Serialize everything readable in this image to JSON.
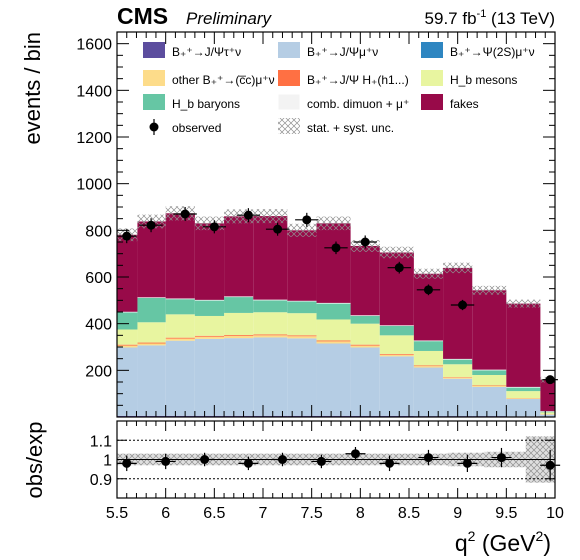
{
  "header": {
    "experiment": "CMS",
    "status": "Preliminary",
    "lumi": "59.7 fb",
    "lumi_sup": "-1",
    "energy": " (13 TeV)"
  },
  "chart_data": {
    "type": "bar",
    "stacked": true,
    "ylabel": "events / bin",
    "ratio_ylabel": "obs/exp",
    "xlabel": "q",
    "xlabel_sup": "2",
    "xlabel_unit": " (GeV",
    "xlabel_unit_sup": "2",
    "xlabel_unit_close": ")",
    "xlim": [
      5.5,
      10
    ],
    "ylim": [
      0,
      1650
    ],
    "ratio_ylim": [
      0.8,
      1.2
    ],
    "xticks": [
      "5.5",
      "6",
      "6.5",
      "7",
      "7.5",
      "8",
      "8.5",
      "9",
      "9.5",
      "10"
    ],
    "yticks": [
      "200",
      "400",
      "600",
      "800",
      "1000",
      "1200",
      "1400",
      "1600"
    ],
    "ratio_yticks": [
      "0.9",
      "1",
      "1.1"
    ],
    "ratio_reference_lines": [
      0.9,
      1.0,
      1.1
    ],
    "grid": false,
    "legend_position": "top",
    "bin_edges": [
      5.5,
      5.71,
      6.0,
      6.3,
      6.6,
      6.9,
      7.25,
      7.55,
      7.9,
      8.2,
      8.55,
      8.85,
      9.15,
      9.5,
      9.85,
      10.0
    ],
    "series": [
      {
        "name": "B₊⁺→J/Ψτ⁺ν",
        "key": "tau",
        "color": "#5c4d9e",
        "values": [
          5,
          5,
          5,
          5,
          5,
          5,
          5,
          5,
          5,
          5,
          4,
          4,
          4,
          3,
          2
        ]
      },
      {
        "name": "B₊⁺→J/Ψμ⁺ν",
        "key": "mu",
        "color": "#b5cde4",
        "values": [
          293,
          302,
          322,
          330,
          333,
          336,
          332,
          310,
          293,
          255,
          208,
          160,
          125,
          74,
          8
        ]
      },
      {
        "name": "B₊⁺→Ψ(2S)μ⁺ν",
        "key": "psi2s",
        "color": "#2e86c1",
        "values": [
          0,
          0,
          0,
          0,
          0,
          0,
          0,
          0,
          0,
          0,
          0,
          0,
          0,
          0,
          0
        ]
      },
      {
        "name": "other B₊⁺→(c̅c)μ⁺ν",
        "key": "other",
        "color": "#fddc8a",
        "values": [
          8,
          8,
          9,
          9,
          9,
          9,
          9,
          9,
          8,
          7,
          6,
          5,
          4,
          3,
          1
        ]
      },
      {
        "name": "B₊⁺→J/Ψ H₊(h1...)",
        "key": "hc",
        "color": "#ff7043",
        "values": [
          4,
          4,
          4,
          4,
          4,
          4,
          4,
          4,
          4,
          3,
          3,
          2,
          2,
          1,
          1
        ]
      },
      {
        "name": "H_b mesons",
        "key": "hb",
        "color": "#e8f5a0",
        "values": [
          65,
          87,
          100,
          85,
          95,
          95,
          95,
          90,
          90,
          80,
          62,
          55,
          45,
          30,
          8
        ]
      },
      {
        "name": "H_b baryons",
        "key": "hbb",
        "color": "#66c6a4",
        "values": [
          73,
          104,
          65,
          66,
          68,
          51,
          50,
          68,
          33,
          40,
          42,
          20,
          20,
          15,
          3
        ]
      },
      {
        "name": "comb. dimuon + μ⁺",
        "key": "comb",
        "color": "#f3f3f3",
        "values": [
          3,
          3,
          3,
          3,
          3,
          3,
          3,
          3,
          3,
          3,
          3,
          3,
          3,
          3,
          2
        ]
      },
      {
        "name": "fakes",
        "key": "fakes",
        "color": "#980a49",
        "values": [
          330,
          325,
          365,
          328,
          343,
          358,
          302,
          341,
          297,
          312,
          286,
          390,
          340,
          357,
          135
        ]
      }
    ],
    "observed": {
      "name": "observed",
      "x": [
        5.6,
        5.85,
        6.2,
        6.5,
        6.85,
        7.15,
        7.45,
        7.75,
        8.05,
        8.4,
        8.7,
        9.05,
        9.35,
        9.75,
        9.95
      ],
      "y": [
        775,
        822,
        870,
        815,
        865,
        805,
        845,
        725,
        750,
        640,
        545,
        480,
        0,
        0,
        160
      ],
      "xerr": [
        0.1,
        0.12,
        0.12,
        0.12,
        0.12,
        0.12,
        0.12,
        0.12,
        0.12,
        0.12,
        0.12,
        0.12,
        0.12,
        0.12,
        0.08
      ],
      "yerr": [
        30,
        30,
        30,
        28,
        30,
        28,
        30,
        27,
        28,
        25,
        23,
        22,
        0,
        0,
        13
      ]
    },
    "uncertainty_label": "stat. + syst. unc.",
    "ratio": {
      "x": [
        5.6,
        6.0,
        6.4,
        6.85,
        7.2,
        7.6,
        7.95,
        8.3,
        8.7,
        9.1,
        9.45,
        9.95
      ],
      "y": [
        0.98,
        0.99,
        1.0,
        0.98,
        1.0,
        0.99,
        1.03,
        0.98,
        1.01,
        0.98,
        1.01,
        0.97
      ],
      "yerr": [
        0.04,
        0.04,
        0.035,
        0.035,
        0.035,
        0.035,
        0.035,
        0.04,
        0.04,
        0.045,
        0.05,
        0.08
      ],
      "unc": [
        0.03,
        0.03,
        0.03,
        0.03,
        0.03,
        0.03,
        0.03,
        0.03,
        0.03,
        0.035,
        0.04,
        0.12
      ]
    }
  }
}
